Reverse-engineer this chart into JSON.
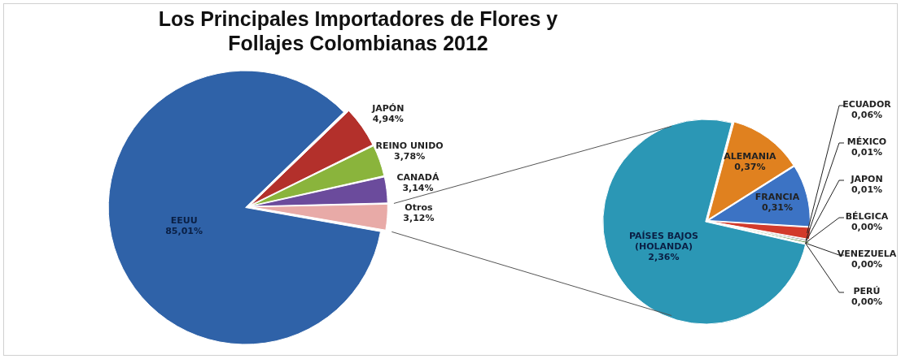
{
  "chart_data": [
    {
      "type": "pie",
      "title": "Los Principales Importadores de Flores y Follajes Colombianas 2012",
      "categories": [
        "JAPÓN",
        "REINO UNIDO",
        "CANADÁ",
        "Otros",
        "EEUU"
      ],
      "values": [
        4.94,
        3.78,
        3.14,
        3.12,
        85.01
      ],
      "value_labels": [
        "4,94%",
        "3,78%",
        "3,14%",
        "3,12%",
        "85,01%"
      ],
      "colors": [
        "#b3302b",
        "#8ab43c",
        "#6b4b9c",
        "#e8aaa7",
        "#2f62a8"
      ]
    },
    {
      "type": "pie",
      "categories": [
        "ALEMANIA",
        "FRANCIA",
        "ECUADOR",
        "MÉXICO",
        "JAPON",
        "BÉLGICA",
        "VENEZUELA",
        "PERÚ",
        "PAÍSES BAJOS (HOLANDA)"
      ],
      "values": [
        0.37,
        0.31,
        0.06,
        0.01,
        0.01,
        0.0,
        0.0,
        0.0,
        2.36
      ],
      "value_labels": [
        "0,37%",
        "0,31%",
        "0,06%",
        "0,01%",
        "0,01%",
        "0,00%",
        "0,00%",
        "0,00%",
        "2,36%"
      ],
      "colors": [
        "#e0811f",
        "#3c73c4",
        "#d23a2b",
        "#8a8a8a",
        "#5a8a3a",
        "#999999",
        "#777777",
        "#aaaaaa",
        "#2b97b5"
      ]
    }
  ]
}
